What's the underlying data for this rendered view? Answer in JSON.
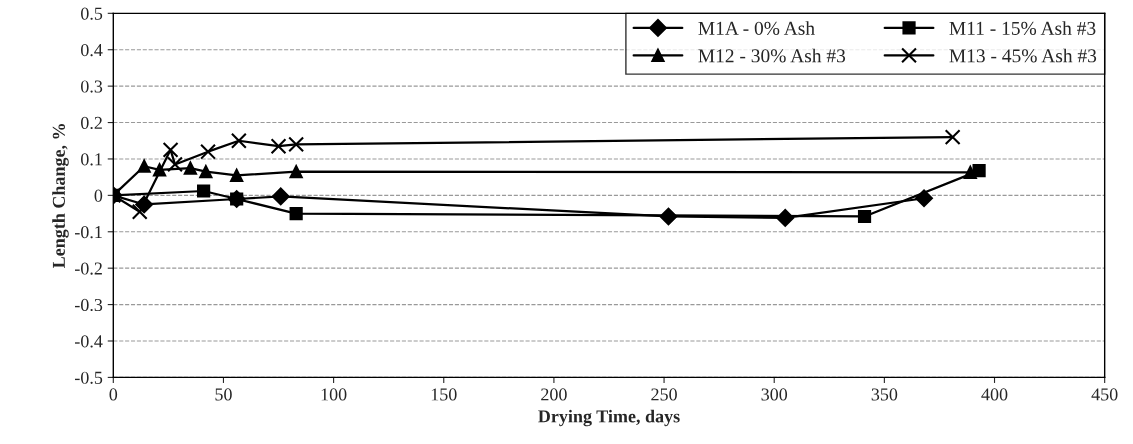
{
  "chart_data": {
    "type": "line",
    "xlabel": "Drying Time, days",
    "ylabel": "Length Change, %",
    "xlim": [
      0,
      450
    ],
    "xticks": [
      0,
      50,
      100,
      150,
      200,
      250,
      300,
      350,
      400,
      450
    ],
    "ylim": [
      -0.5,
      0.5
    ],
    "yticks": [
      -0.5,
      -0.4,
      -0.3,
      -0.2,
      -0.1,
      0,
      0.1,
      0.2,
      0.3,
      0.4,
      0.5
    ],
    "grid": "y",
    "legend": "top right",
    "line_style": "solid",
    "series": [
      {
        "name": "M1A - 0% Ash",
        "color": "#000000",
        "marker": "diamond",
        "x": [
          0,
          14,
          56,
          76,
          252,
          305,
          368
        ],
        "values": [
          0,
          -0.025,
          -0.01,
          -0.003,
          -0.058,
          -0.062,
          -0.008
        ]
      },
      {
        "name": "M11 - 15% Ash #3",
        "color": "#000000",
        "marker": "square",
        "x": [
          0,
          41,
          56,
          83,
          341,
          393
        ],
        "values": [
          0,
          0.012,
          -0.01,
          -0.05,
          -0.058,
          0.068
        ]
      },
      {
        "name": "M12 - 30% Ash #3",
        "color": "#000000",
        "marker": "triangle",
        "x": [
          0,
          14,
          21,
          35,
          42,
          56,
          83,
          389
        ],
        "values": [
          0,
          0.08,
          0.07,
          0.075,
          0.065,
          0.055,
          0.065,
          0.063
        ]
      },
      {
        "name": "M13 - 45% Ash #3",
        "color": "#000000",
        "marker": "cross",
        "x": [
          0,
          12,
          26,
          28,
          43,
          57,
          75,
          83,
          381
        ],
        "values": [
          0,
          -0.045,
          0.125,
          0.085,
          0.12,
          0.15,
          0.135,
          0.14,
          0.16
        ]
      }
    ]
  }
}
